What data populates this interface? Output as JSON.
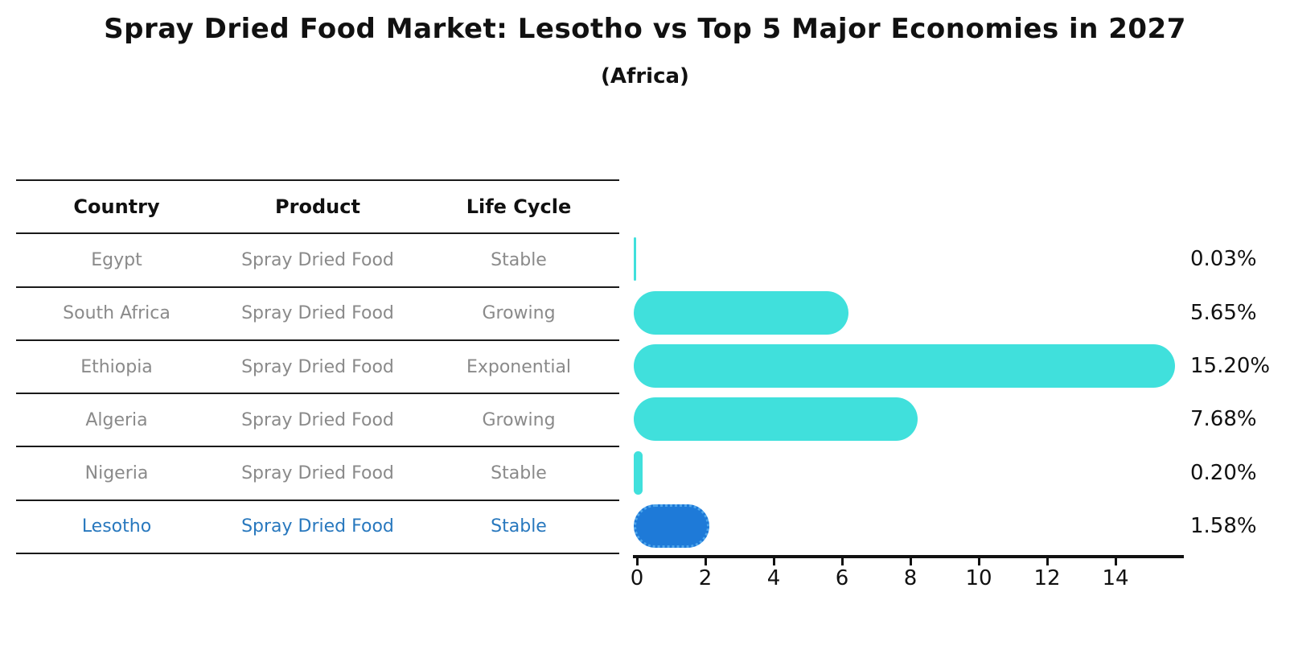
{
  "title": "Spray Dried Food Market: Lesotho vs Top 5 Major Economies in 2027",
  "subtitle": "(Africa)",
  "table": {
    "headers": [
      "Country",
      "Product",
      "Life Cycle"
    ],
    "rows": [
      {
        "country": "Egypt",
        "product": "Spray Dried Food",
        "life_cycle": "Stable",
        "highlight": false
      },
      {
        "country": "South Africa",
        "product": "Spray Dried Food",
        "life_cycle": "Growing",
        "highlight": false
      },
      {
        "country": "Ethiopia",
        "product": "Spray Dried Food",
        "life_cycle": "Exponential",
        "highlight": false
      },
      {
        "country": "Algeria",
        "product": "Spray Dried Food",
        "life_cycle": "Growing",
        "highlight": false
      },
      {
        "country": "Nigeria",
        "product": "Spray Dried Food",
        "life_cycle": "Stable",
        "highlight": false
      },
      {
        "country": "Lesotho",
        "product": "Spray Dried Food",
        "life_cycle": "Stable",
        "highlight": true
      }
    ]
  },
  "chart_data": {
    "type": "bar",
    "orientation": "horizontal",
    "title": "Spray Dried Food Market: Lesotho vs Top 5 Major Economies in 2027",
    "subtitle": "(Africa)",
    "categories": [
      "Egypt",
      "South Africa",
      "Ethiopia",
      "Algeria",
      "Nigeria",
      "Lesotho"
    ],
    "values": [
      0.03,
      5.65,
      15.2,
      7.68,
      0.2,
      1.58
    ],
    "value_labels": [
      "0.03%",
      "5.65%",
      "15.20%",
      "7.68%",
      "0.20%",
      "1.58%"
    ],
    "xticks": [
      0,
      2,
      4,
      6,
      8,
      10,
      12,
      14
    ],
    "xlim": [
      0,
      16.1
    ],
    "grid": false,
    "legend": false,
    "highlight_index": 5
  },
  "colors": {
    "bar": "#40E0DC",
    "highlight_bar_fill": "#1E7AD8",
    "highlight_bar_border": "#4FA6EC",
    "highlight_text": "#2878BE",
    "table_text": "#8A8A8A",
    "heading_text": "#111111",
    "axis": "#111111"
  }
}
